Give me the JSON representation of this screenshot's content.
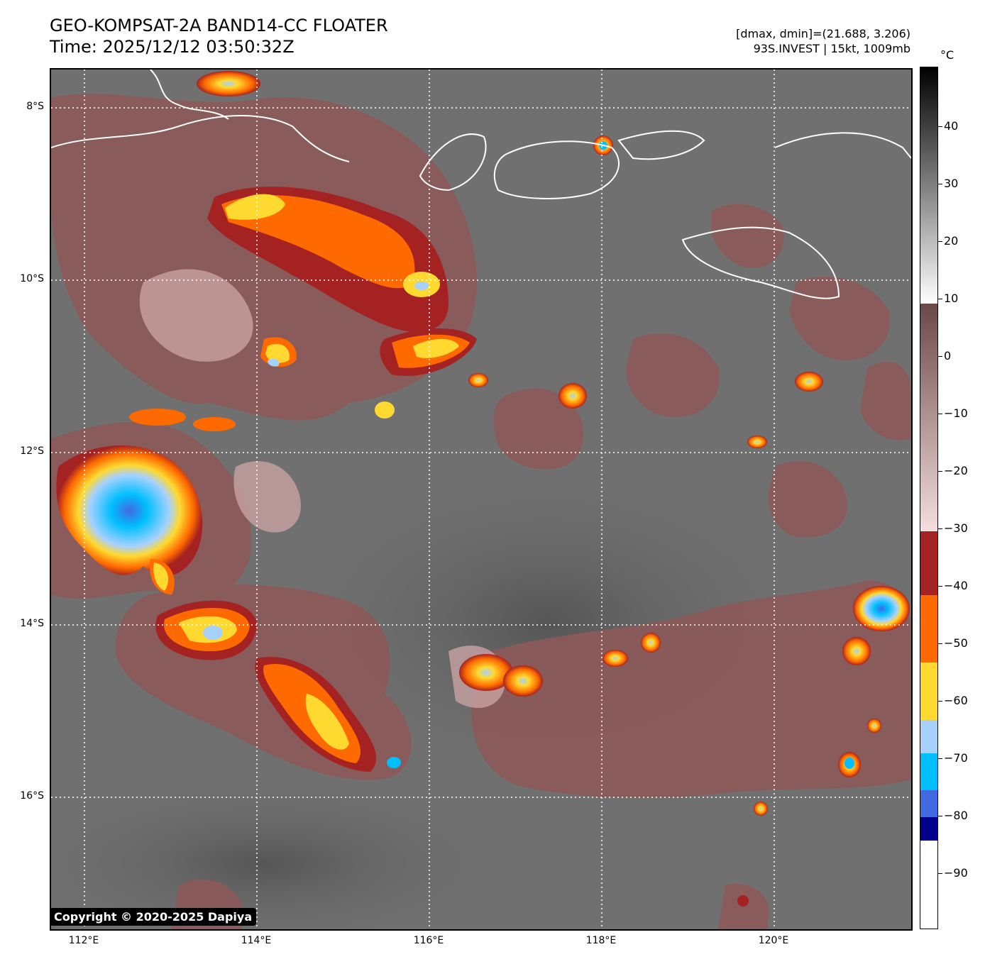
{
  "header": {
    "title_line1": "GEO-KOMPSAT-2A BAND14-CC FLOATER",
    "title_line2": "Time: 2025/12/12 03:50:32Z",
    "info_line1": "[dmax, dmin]=(21.688, 3.206)",
    "info_line2": "93S.INVEST | 15kt, 1009mb"
  },
  "map": {
    "copyright": "Copyright © 2020-2025 Dapiya",
    "lat_labels": [
      "8°S",
      "10°S",
      "12°S",
      "14°S",
      "16°S"
    ],
    "lon_labels": [
      "112°E",
      "114°E",
      "116°E",
      "118°E",
      "120°E"
    ],
    "background_color": "#6e6e6e",
    "coastline_color": "#ffffff"
  },
  "colorbar": {
    "unit": "°C",
    "ticks": [
      "40",
      "30",
      "20",
      "10",
      "0",
      "−10",
      "−20",
      "−30",
      "−40",
      "−50",
      "−60",
      "−70",
      "−80",
      "−90"
    ],
    "colors": {
      "warm_black": "#000000",
      "gray_white": "#ffffff",
      "brown": "#8b5a5a",
      "pink": "#f2d5d5",
      "dark_red": "#a52222",
      "orange": "#ff6a00",
      "yellow": "#ffd92f",
      "light_blue": "#a6d1ff",
      "cyan": "#00bfff",
      "royal_blue": "#4169e1",
      "navy": "#00008b",
      "white": "#ffffff"
    }
  }
}
